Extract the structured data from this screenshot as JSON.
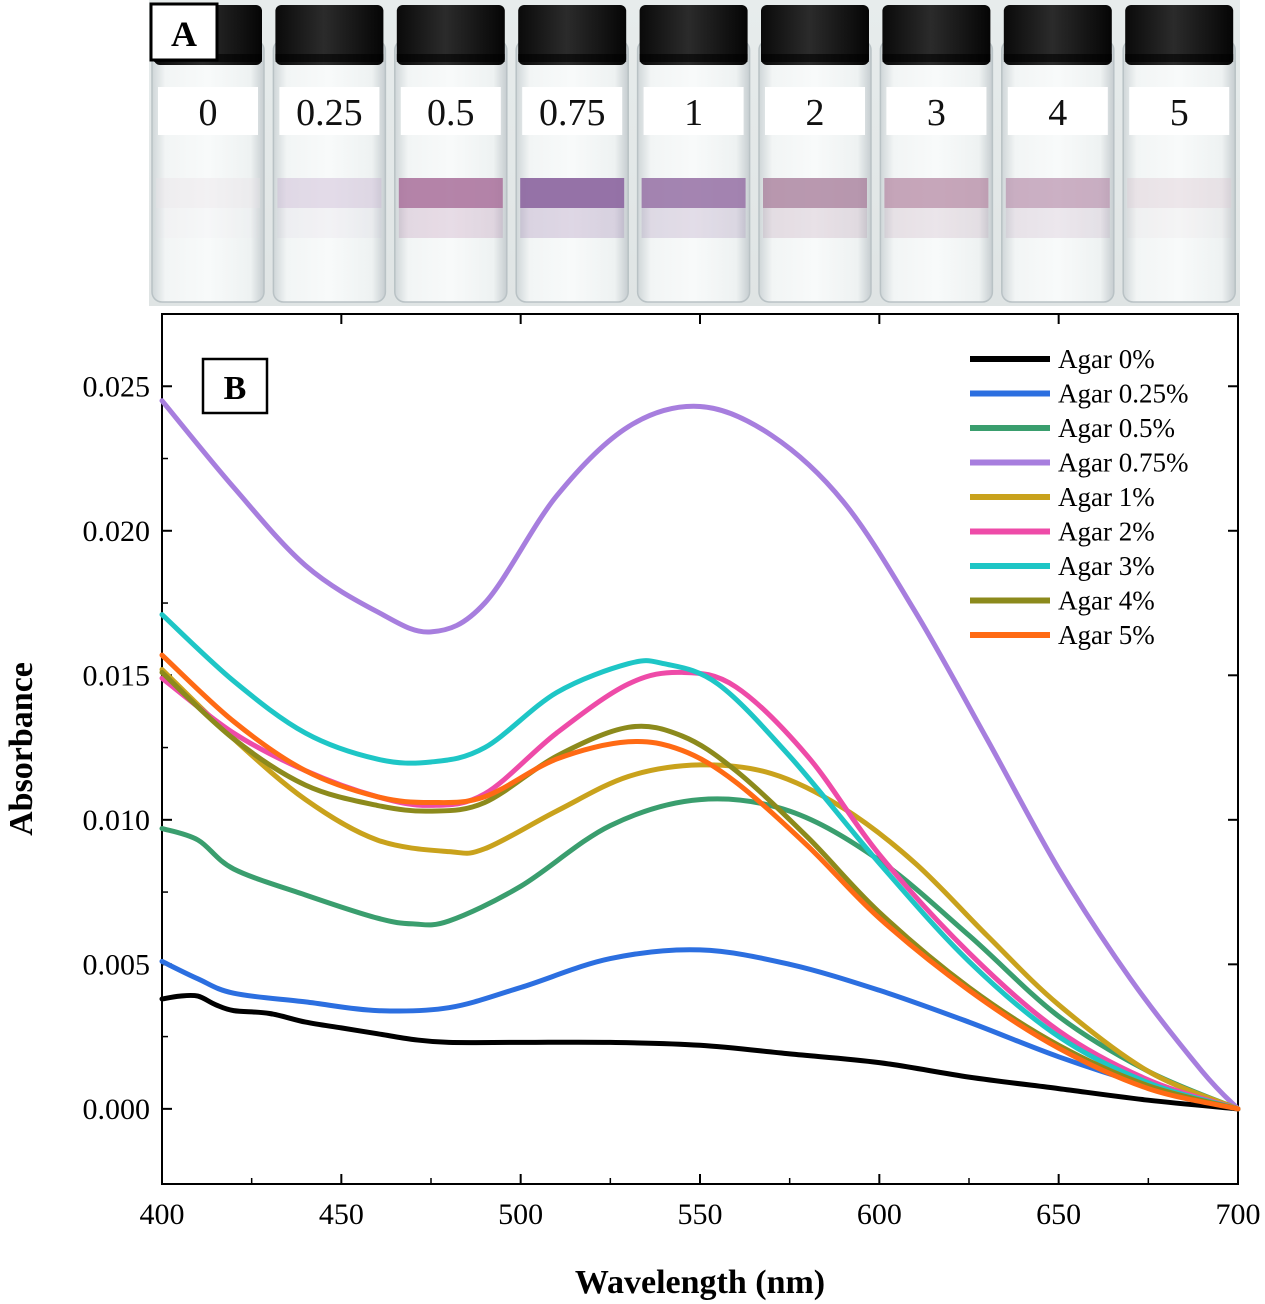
{
  "panel_a": {
    "label": "A",
    "vial_labels": [
      "0",
      "0.25",
      "0.5",
      "0.75",
      "1",
      "2",
      "3",
      "4",
      "5"
    ],
    "band_colors": [
      "#e8dfe6",
      "#c9b6d3",
      "#a86e9a",
      "#8f6aa2",
      "#9a77a8",
      "#a97f9c",
      "#b58aa4",
      "#b890ad",
      "#dcc8d2"
    ],
    "band_strength": [
      0.35,
      0.45,
      0.85,
      0.95,
      0.9,
      0.8,
      0.75,
      0.7,
      0.4
    ]
  },
  "chart_data": {
    "type": "line",
    "panel_label": "B",
    "xlabel": "Wavelength (nm)",
    "ylabel": "Absorbance",
    "xlim": [
      400,
      700
    ],
    "ylim": [
      -0.0026,
      0.0275
    ],
    "xticks": [
      "400",
      "450",
      "500",
      "550",
      "600",
      "650",
      "700"
    ],
    "yticks": [
      "0.000",
      "0.005",
      "0.010",
      "0.015",
      "0.020",
      "0.025"
    ],
    "legend_position": "top-right",
    "series": [
      {
        "name": "Agar 0%",
        "color": "#000000",
        "x": [
          400,
          405,
          410,
          415,
          420,
          430,
          440,
          450,
          460,
          470,
          480,
          500,
          525,
          550,
          575,
          600,
          625,
          650,
          675,
          700
        ],
        "y": [
          0.0038,
          0.0039,
          0.0039,
          0.0036,
          0.0034,
          0.0033,
          0.003,
          0.0028,
          0.0026,
          0.0024,
          0.0023,
          0.0023,
          0.0023,
          0.0022,
          0.0019,
          0.0016,
          0.0011,
          0.0007,
          0.0003,
          0.0
        ]
      },
      {
        "name": "Agar 0.25%",
        "color": "#2c6fe0",
        "x": [
          400,
          410,
          420,
          440,
          460,
          480,
          500,
          525,
          550,
          575,
          600,
          625,
          650,
          675,
          700
        ],
        "y": [
          0.0051,
          0.0045,
          0.004,
          0.0037,
          0.0034,
          0.0035,
          0.0042,
          0.0052,
          0.0055,
          0.005,
          0.0041,
          0.003,
          0.0018,
          0.0008,
          0.0
        ]
      },
      {
        "name": "Agar 0.5%",
        "color": "#3a9e6e",
        "x": [
          400,
          410,
          420,
          440,
          460,
          470,
          480,
          500,
          525,
          550,
          575,
          600,
          625,
          650,
          675,
          700
        ],
        "y": [
          0.0097,
          0.0093,
          0.0083,
          0.0074,
          0.0066,
          0.0064,
          0.0065,
          0.0077,
          0.0098,
          0.0107,
          0.0103,
          0.0086,
          0.006,
          0.0032,
          0.0013,
          0.0
        ]
      },
      {
        "name": "Agar 0.75%",
        "color": "#a77ede",
        "x": [
          400,
          420,
          440,
          460,
          475,
          490,
          510,
          530,
          550,
          570,
          590,
          610,
          630,
          650,
          670,
          690,
          700
        ],
        "y": [
          0.0245,
          0.0215,
          0.0188,
          0.0172,
          0.0165,
          0.0175,
          0.0212,
          0.0236,
          0.0243,
          0.0233,
          0.021,
          0.0172,
          0.0128,
          0.0083,
          0.0045,
          0.0013,
          0.0
        ]
      },
      {
        "name": "Agar 1%",
        "color": "#c9a21c",
        "x": [
          400,
          420,
          440,
          460,
          480,
          490,
          510,
          530,
          550,
          570,
          590,
          610,
          630,
          650,
          675,
          700
        ],
        "y": [
          0.0152,
          0.0128,
          0.0107,
          0.0093,
          0.0089,
          0.009,
          0.0103,
          0.0115,
          0.0119,
          0.0116,
          0.0104,
          0.0085,
          0.006,
          0.0036,
          0.0013,
          0.0
        ]
      },
      {
        "name": "Agar 2%",
        "color": "#ee4ba8",
        "x": [
          400,
          420,
          440,
          460,
          475,
          490,
          510,
          530,
          545,
          560,
          580,
          600,
          625,
          650,
          675,
          700
        ],
        "y": [
          0.0149,
          0.013,
          0.0117,
          0.0108,
          0.0105,
          0.0109,
          0.013,
          0.0147,
          0.0151,
          0.0146,
          0.0122,
          0.0088,
          0.0054,
          0.0027,
          0.001,
          0.0
        ]
      },
      {
        "name": "Agar 3%",
        "color": "#1ec6c6",
        "x": [
          400,
          420,
          440,
          460,
          475,
          490,
          510,
          530,
          540,
          555,
          575,
          600,
          625,
          650,
          675,
          700
        ],
        "y": [
          0.0171,
          0.0148,
          0.013,
          0.0121,
          0.012,
          0.0125,
          0.0144,
          0.0154,
          0.0154,
          0.0147,
          0.0122,
          0.0085,
          0.0051,
          0.0025,
          0.0009,
          0.0
        ]
      },
      {
        "name": "Agar 4%",
        "color": "#8c8a1c",
        "x": [
          400,
          420,
          440,
          460,
          475,
          490,
          510,
          530,
          545,
          560,
          580,
          600,
          625,
          650,
          675,
          700
        ],
        "y": [
          0.0151,
          0.0128,
          0.0112,
          0.0105,
          0.0103,
          0.0106,
          0.0122,
          0.0132,
          0.0129,
          0.0117,
          0.0094,
          0.0068,
          0.0042,
          0.0022,
          0.0008,
          0.0
        ]
      },
      {
        "name": "Agar 5%",
        "color": "#ff6a14",
        "x": [
          400,
          420,
          440,
          460,
          475,
          490,
          510,
          530,
          545,
          560,
          580,
          600,
          625,
          650,
          675,
          700
        ],
        "y": [
          0.0157,
          0.0134,
          0.0117,
          0.0108,
          0.0106,
          0.0108,
          0.0121,
          0.0127,
          0.0124,
          0.0113,
          0.0091,
          0.0066,
          0.0041,
          0.0021,
          0.0007,
          0.0
        ]
      }
    ]
  }
}
